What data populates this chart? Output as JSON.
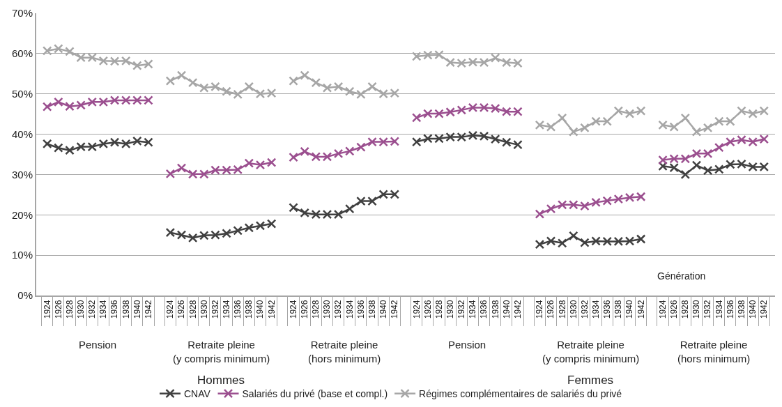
{
  "chart_data": [
    {
      "type": "line",
      "categories": [
        "1924",
        "1926",
        "1928",
        "1930",
        "1932",
        "1934",
        "1936",
        "1938",
        "1940",
        "1942"
      ],
      "xlabel": "Pension",
      "ylim": [
        0,
        70
      ],
      "yticks": [
        {
          "value": 0,
          "label": "0%"
        },
        {
          "value": 10,
          "label": "10%"
        },
        {
          "value": 20,
          "label": "20%"
        },
        {
          "value": 30,
          "label": "30%"
        },
        {
          "value": 40,
          "label": "40%"
        },
        {
          "value": 50,
          "label": "50%"
        },
        {
          "value": 60,
          "label": "60%"
        },
        {
          "value": 70,
          "label": "70%"
        }
      ],
      "grid": "y",
      "marker": "cross",
      "legend": "bottom",
      "series": [
        {
          "name": "CNAV",
          "color": "#404040",
          "values": [
            37.6,
            36.6,
            36.0,
            36.9,
            36.9,
            37.6,
            38.0,
            37.6,
            38.3,
            38.0
          ]
        },
        {
          "name": "Salariés du privé (base et compl.)",
          "color": "#9b4f8f",
          "values": [
            46.8,
            48.0,
            46.9,
            47.2,
            48.0,
            48.0,
            48.4,
            48.4,
            48.4,
            48.4
          ]
        },
        {
          "name": "Régimes complémentaires de salariés du privé",
          "color": "#a6a6a6",
          "values": [
            60.7,
            61.2,
            60.5,
            59.0,
            59.0,
            58.2,
            58.1,
            58.2,
            57.0,
            57.4
          ]
        }
      ]
    },
    {
      "type": "line",
      "categories": [
        "1924",
        "1926",
        "1928",
        "1930",
        "1932",
        "1934",
        "1936",
        "1938",
        "1940",
        "1942"
      ],
      "xlabel": "Retraite pleine\n(y compris minimum)",
      "title": "Hommes",
      "ylim": [
        0,
        70
      ],
      "yticks": [
        {
          "value": 0,
          "label": null
        },
        {
          "value": 10,
          "label": null
        },
        {
          "value": 20,
          "label": null
        },
        {
          "value": 30,
          "label": null
        },
        {
          "value": 40,
          "label": null
        },
        {
          "value": 50,
          "label": null
        },
        {
          "value": 60,
          "label": null
        },
        {
          "value": 70,
          "label": null
        }
      ],
      "grid": "y",
      "marker": "cross",
      "tick_labels": "x",
      "series": [
        {
          "color": "#404040",
          "values": [
            15.6,
            15.0,
            14.3,
            14.9,
            15.0,
            15.4,
            16.1,
            16.8,
            17.3,
            17.8
          ]
        },
        {
          "color": "#9b4f8f",
          "values": [
            30.2,
            31.6,
            30.1,
            30.1,
            31.1,
            31.1,
            31.2,
            32.8,
            32.4,
            33.0
          ]
        },
        {
          "color": "#a6a6a6",
          "values": [
            53.2,
            54.6,
            52.8,
            51.5,
            51.8,
            50.6,
            49.9,
            51.8,
            50.0,
            50.2
          ]
        }
      ]
    },
    {
      "type": "line",
      "categories": [
        "1924",
        "1926",
        "1928",
        "1930",
        "1932",
        "1934",
        "1936",
        "1938",
        "1940",
        "1942"
      ],
      "xlabel": "Retraite pleine\n(hors minimum)",
      "ylim": [
        0,
        70
      ],
      "yticks": [
        {
          "value": 0,
          "label": null
        },
        {
          "value": 10,
          "label": null
        },
        {
          "value": 20,
          "label": null
        },
        {
          "value": 30,
          "label": null
        },
        {
          "value": 40,
          "label": null
        },
        {
          "value": 50,
          "label": null
        },
        {
          "value": 60,
          "label": null
        },
        {
          "value": 70,
          "label": null
        }
      ],
      "grid": "y",
      "marker": "cross",
      "tick_labels": "x",
      "series": [
        {
          "color": "#404040",
          "values": [
            21.8,
            20.5,
            20.1,
            20.1,
            20.1,
            21.5,
            23.4,
            23.4,
            25.1,
            25.1
          ]
        },
        {
          "color": "#9b4f8f",
          "values": [
            34.3,
            35.7,
            34.4,
            34.4,
            35.2,
            35.8,
            36.8,
            38.1,
            38.1,
            38.2
          ]
        },
        {
          "color": "#a6a6a6",
          "values": [
            53.2,
            54.6,
            52.8,
            51.5,
            51.8,
            50.6,
            49.9,
            51.8,
            50.0,
            50.2
          ]
        }
      ]
    },
    {
      "type": "line",
      "categories": [
        "1924",
        "1926",
        "1928",
        "1930",
        "1932",
        "1934",
        "1936",
        "1938",
        "1940",
        "1942"
      ],
      "xlabel": "Pension",
      "ylim": [
        0,
        70
      ],
      "yticks": [
        {
          "value": 0,
          "label": null
        },
        {
          "value": 10,
          "label": null
        },
        {
          "value": 20,
          "label": null
        },
        {
          "value": 30,
          "label": null
        },
        {
          "value": 40,
          "label": null
        },
        {
          "value": 50,
          "label": null
        },
        {
          "value": 60,
          "label": null
        },
        {
          "value": 70,
          "label": null
        }
      ],
      "grid": "y",
      "marker": "cross",
      "tick_labels": "x",
      "series": [
        {
          "color": "#404040",
          "values": [
            38.1,
            38.9,
            38.9,
            39.3,
            39.3,
            39.7,
            39.5,
            38.8,
            38.0,
            37.4
          ]
        },
        {
          "color": "#9b4f8f",
          "values": [
            44.1,
            45.1,
            45.1,
            45.5,
            46.0,
            46.6,
            46.6,
            46.4,
            45.6,
            45.6
          ]
        },
        {
          "color": "#a6a6a6",
          "values": [
            59.3,
            59.6,
            59.7,
            57.8,
            57.6,
            57.9,
            57.8,
            58.9,
            57.8,
            57.6
          ]
        }
      ]
    },
    {
      "type": "line",
      "categories": [
        "1924",
        "1926",
        "1928",
        "1930",
        "1932",
        "1934",
        "1936",
        "1938",
        "1940",
        "1942"
      ],
      "xlabel": "Retraite pleine\n(y compris minimum)",
      "title": "Femmes",
      "ylim": [
        0,
        70
      ],
      "yticks": [
        {
          "value": 0,
          "label": null
        },
        {
          "value": 10,
          "label": null
        },
        {
          "value": 20,
          "label": null
        },
        {
          "value": 30,
          "label": null
        },
        {
          "value": 40,
          "label": null
        },
        {
          "value": 50,
          "label": null
        },
        {
          "value": 60,
          "label": null
        },
        {
          "value": 70,
          "label": null
        }
      ],
      "grid": "y",
      "marker": "cross",
      "tick_labels": "x",
      "series": [
        {
          "color": "#404040",
          "values": [
            12.7,
            13.5,
            13.0,
            14.8,
            13.1,
            13.5,
            13.4,
            13.4,
            13.5,
            14.0
          ]
        },
        {
          "color": "#9b4f8f",
          "values": [
            20.2,
            21.5,
            22.5,
            22.5,
            22.2,
            23.1,
            23.5,
            23.9,
            24.3,
            24.5
          ]
        },
        {
          "color": "#a6a6a6",
          "values": [
            42.3,
            41.8,
            44.0,
            40.6,
            41.6,
            43.2,
            43.2,
            45.8,
            45.1,
            45.8
          ]
        }
      ]
    },
    {
      "type": "line",
      "categories": [
        "1924",
        "1926",
        "1928",
        "1930",
        "1932",
        "1934",
        "1936",
        "1938",
        "1940",
        "1942"
      ],
      "xlabel": "Retraite pleine\n(hors minimum)",
      "annotations": [
        "Génération"
      ],
      "ylim": [
        0,
        70
      ],
      "yticks": [
        {
          "value": 0,
          "label": null
        },
        {
          "value": 10,
          "label": null
        },
        {
          "value": 20,
          "label": null
        },
        {
          "value": 30,
          "label": null
        },
        {
          "value": 40,
          "label": null
        },
        {
          "value": 50,
          "label": null
        },
        {
          "value": 60,
          "label": null
        },
        {
          "value": 70,
          "label": null
        }
      ],
      "grid": "y",
      "marker": "cross",
      "tick_labels": "x",
      "series": [
        {
          "color": "#404040",
          "values": [
            32.1,
            31.7,
            30.0,
            32.3,
            31.0,
            31.3,
            32.5,
            32.6,
            31.9,
            31.9
          ]
        },
        {
          "color": "#9b4f8f",
          "values": [
            33.6,
            33.9,
            33.9,
            35.2,
            35.2,
            36.7,
            38.1,
            38.6,
            38.1,
            38.8
          ]
        },
        {
          "color": "#a6a6a6",
          "values": [
            42.3,
            41.8,
            44.0,
            40.6,
            41.6,
            43.2,
            43.2,
            45.8,
            45.1,
            45.8
          ]
        }
      ]
    }
  ]
}
